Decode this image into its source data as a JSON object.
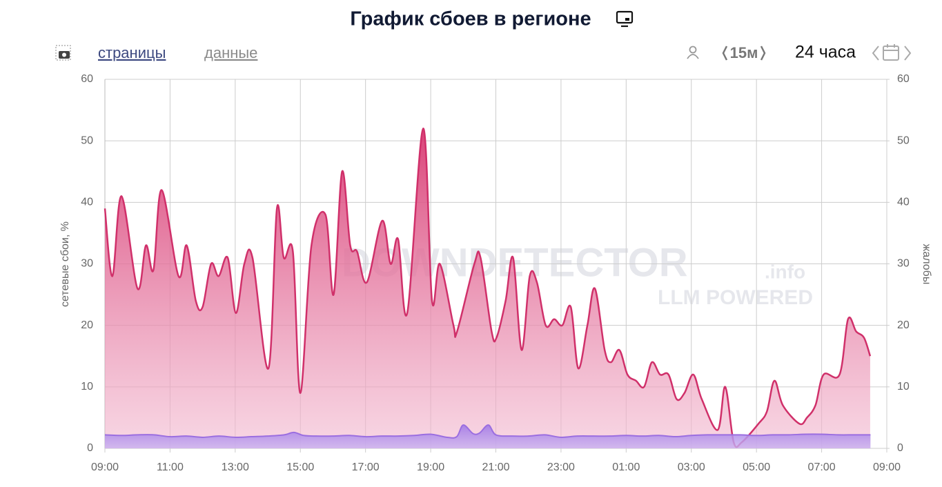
{
  "header": {
    "title": "График сбоев в регионе",
    "tabs": [
      "страницы",
      "данные"
    ],
    "interval": "15м",
    "period": "24 часа"
  },
  "watermark": {
    "brand": "DOWNDETECTOR",
    "suffix": ".info",
    "tagline": "LLM POWERED"
  },
  "chart_data": {
    "type": "line",
    "ylabel": "сетевые сбои, %",
    "y2label": "жалобы",
    "xlim": [
      0,
      24
    ],
    "xticks": [
      {
        "value": 0,
        "label": "09:00"
      },
      {
        "value": 2,
        "label": "11:00"
      },
      {
        "value": 4,
        "label": "13:00"
      },
      {
        "value": 6,
        "label": "15:00"
      },
      {
        "value": 8,
        "label": "17:00"
      },
      {
        "value": 10,
        "label": "19:00"
      },
      {
        "value": 12,
        "label": "21:00"
      },
      {
        "value": 14,
        "label": "23:00"
      },
      {
        "value": 16,
        "label": "01:00"
      },
      {
        "value": 18,
        "label": "03:00"
      },
      {
        "value": 20,
        "label": "05:00"
      },
      {
        "value": 22,
        "label": "07:00"
      },
      {
        "value": 24,
        "label": "09:00"
      }
    ],
    "ylim": [
      0,
      60
    ],
    "yticks": [
      0,
      10,
      20,
      30,
      40,
      50,
      60
    ],
    "y2lim": [
      0,
      60
    ],
    "y2ticks": [
      0,
      10,
      20,
      30,
      40,
      50,
      60
    ],
    "grid": true,
    "series": [
      {
        "color": "#d0306a",
        "x": [
          0,
          0.23,
          0.51,
          1.0,
          1.26,
          1.49,
          1.74,
          2.26,
          2.51,
          2.79,
          3.0,
          3.26,
          3.49,
          3.77,
          4.02,
          4.28,
          4.53,
          5.02,
          5.28,
          5.49,
          5.77,
          6.0,
          6.34,
          6.77,
          7.02,
          7.28,
          7.53,
          7.74,
          8.04,
          8.51,
          8.77,
          9.0,
          9.28,
          9.77,
          10.04,
          10.28,
          10.7,
          10.81,
          11.34,
          11.53,
          11.87,
          12.02,
          12.3,
          12.53,
          12.79,
          13.04,
          13.26,
          13.53,
          13.79,
          14.04,
          14.3,
          14.53,
          14.81,
          15.04,
          15.34,
          15.53,
          15.79,
          16.04,
          16.3,
          16.55,
          16.79,
          17.04,
          17.3,
          17.55,
          17.79,
          18.06,
          18.32,
          18.81,
          19.04,
          19.3,
          19.55,
          20.06,
          20.32,
          20.55,
          20.81,
          21.32,
          21.55,
          21.81,
          22.06,
          22.55,
          22.81,
          23.06,
          23.3,
          23.49
        ],
        "values": [
          39,
          28,
          41,
          26,
          33,
          29,
          42,
          28,
          33,
          24,
          23,
          30,
          28,
          31,
          22,
          30,
          31,
          13,
          39,
          31,
          32,
          9,
          33,
          38,
          25,
          45,
          33,
          32,
          27,
          37,
          30,
          34,
          22,
          52,
          24,
          30,
          20,
          19,
          30,
          31,
          19,
          18,
          24,
          31,
          16,
          28,
          27,
          20,
          21,
          20,
          23,
          13,
          20,
          26,
          16,
          14,
          16,
          12,
          11,
          10,
          14,
          12,
          12,
          8,
          9,
          12,
          8,
          3,
          10,
          1,
          1,
          4,
          6,
          11,
          7,
          4,
          5,
          7,
          12,
          12,
          21,
          19,
          18,
          15
        ]
      },
      {
        "color": "#9b6ee0",
        "axis": "y2",
        "x": [
          0,
          0.5,
          1,
          1.5,
          2,
          2.5,
          3,
          3.5,
          4,
          4.5,
          5,
          5.5,
          5.8,
          6.1,
          6.5,
          7,
          7.5,
          8,
          8.5,
          9,
          9.5,
          10,
          10.5,
          10.8,
          11.0,
          11.3,
          11.5,
          11.77,
          12.0,
          12.5,
          13,
          13.5,
          14,
          14.5,
          15,
          15.5,
          16,
          16.5,
          17,
          17.5,
          18,
          18.5,
          19,
          19.5,
          20,
          20.5,
          21,
          21.5,
          22,
          22.5,
          23,
          23.5
        ],
        "values": [
          2.2,
          2.1,
          2.2,
          2.2,
          1.9,
          2,
          1.8,
          2,
          1.8,
          1.9,
          2,
          2.2,
          2.6,
          2.1,
          2,
          2,
          2.1,
          1.9,
          2,
          2,
          2.1,
          2.3,
          1.8,
          1.9,
          3.8,
          2.4,
          2.5,
          3.8,
          2.2,
          2,
          2,
          2.2,
          1.8,
          2,
          2,
          2,
          2.1,
          2,
          2.1,
          1.9,
          2.1,
          2.2,
          2.2,
          2.2,
          2.1,
          2.2,
          2.2,
          2.3,
          2.3,
          2.2,
          2.2,
          2.2
        ]
      }
    ]
  }
}
